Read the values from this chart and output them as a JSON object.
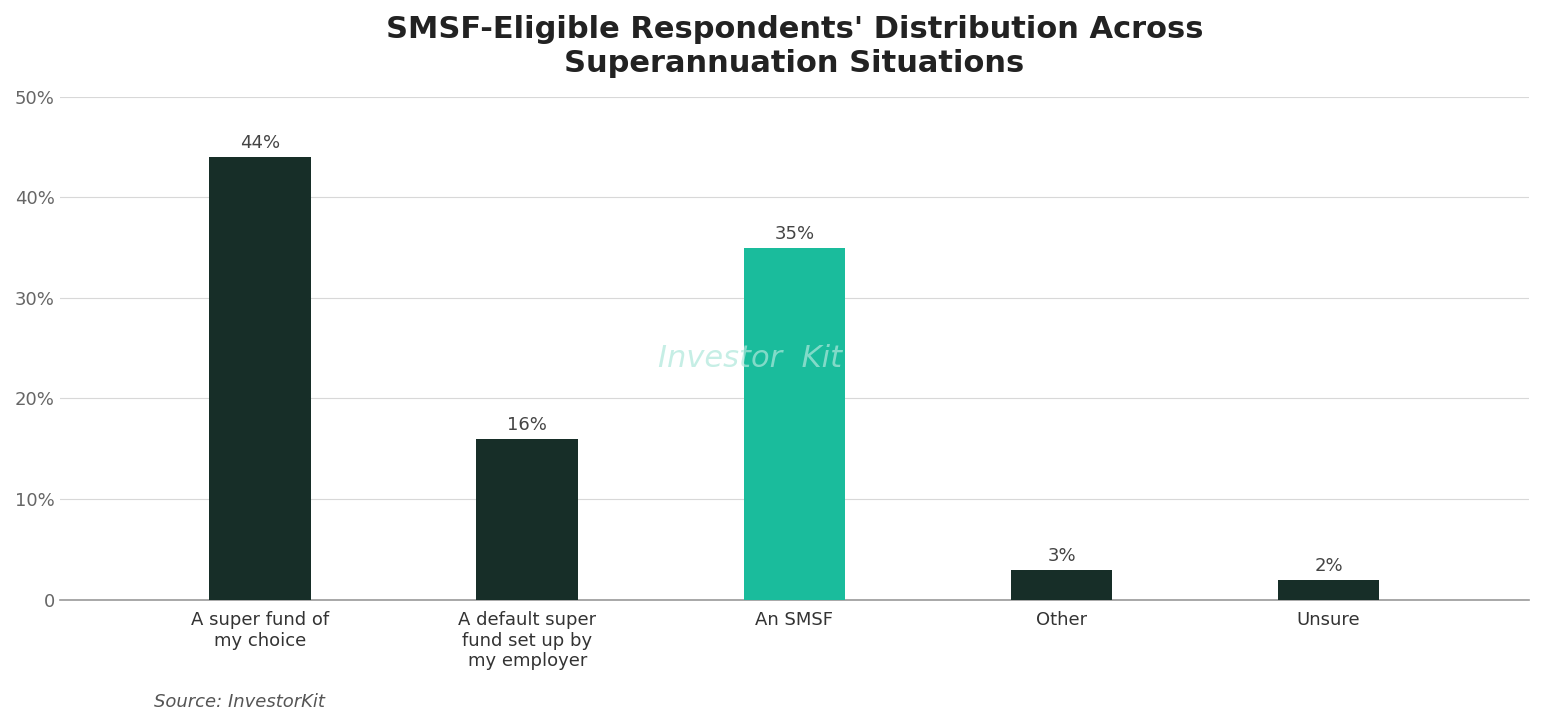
{
  "title": "SMSF-Eligible Respondents' Distribution Across\nSuperannuation Situations",
  "categories": [
    "A super fund of\nmy choice",
    "A default super\nfund set up by\nmy employer",
    "An SMSF",
    "Other",
    "Unsure"
  ],
  "values": [
    44,
    16,
    35,
    3,
    2
  ],
  "bar_colors": [
    "#172e28",
    "#172e28",
    "#1abc9c",
    "#172e28",
    "#172e28"
  ],
  "label_values": [
    "44%",
    "16%",
    "35%",
    "3%",
    "2%"
  ],
  "ylim": [
    0,
    50
  ],
  "yticks": [
    0,
    10,
    20,
    30,
    40,
    50
  ],
  "ytick_labels": [
    "0",
    "10%",
    "20%",
    "30%",
    "40%",
    "50%"
  ],
  "source_text": "Source: InvestorKit",
  "watermark_text": "Investor  Kit",
  "background_color": "#ffffff",
  "title_fontsize": 22,
  "tick_fontsize": 13,
  "label_fontsize": 13,
  "source_fontsize": 13,
  "bar_width": 0.38
}
